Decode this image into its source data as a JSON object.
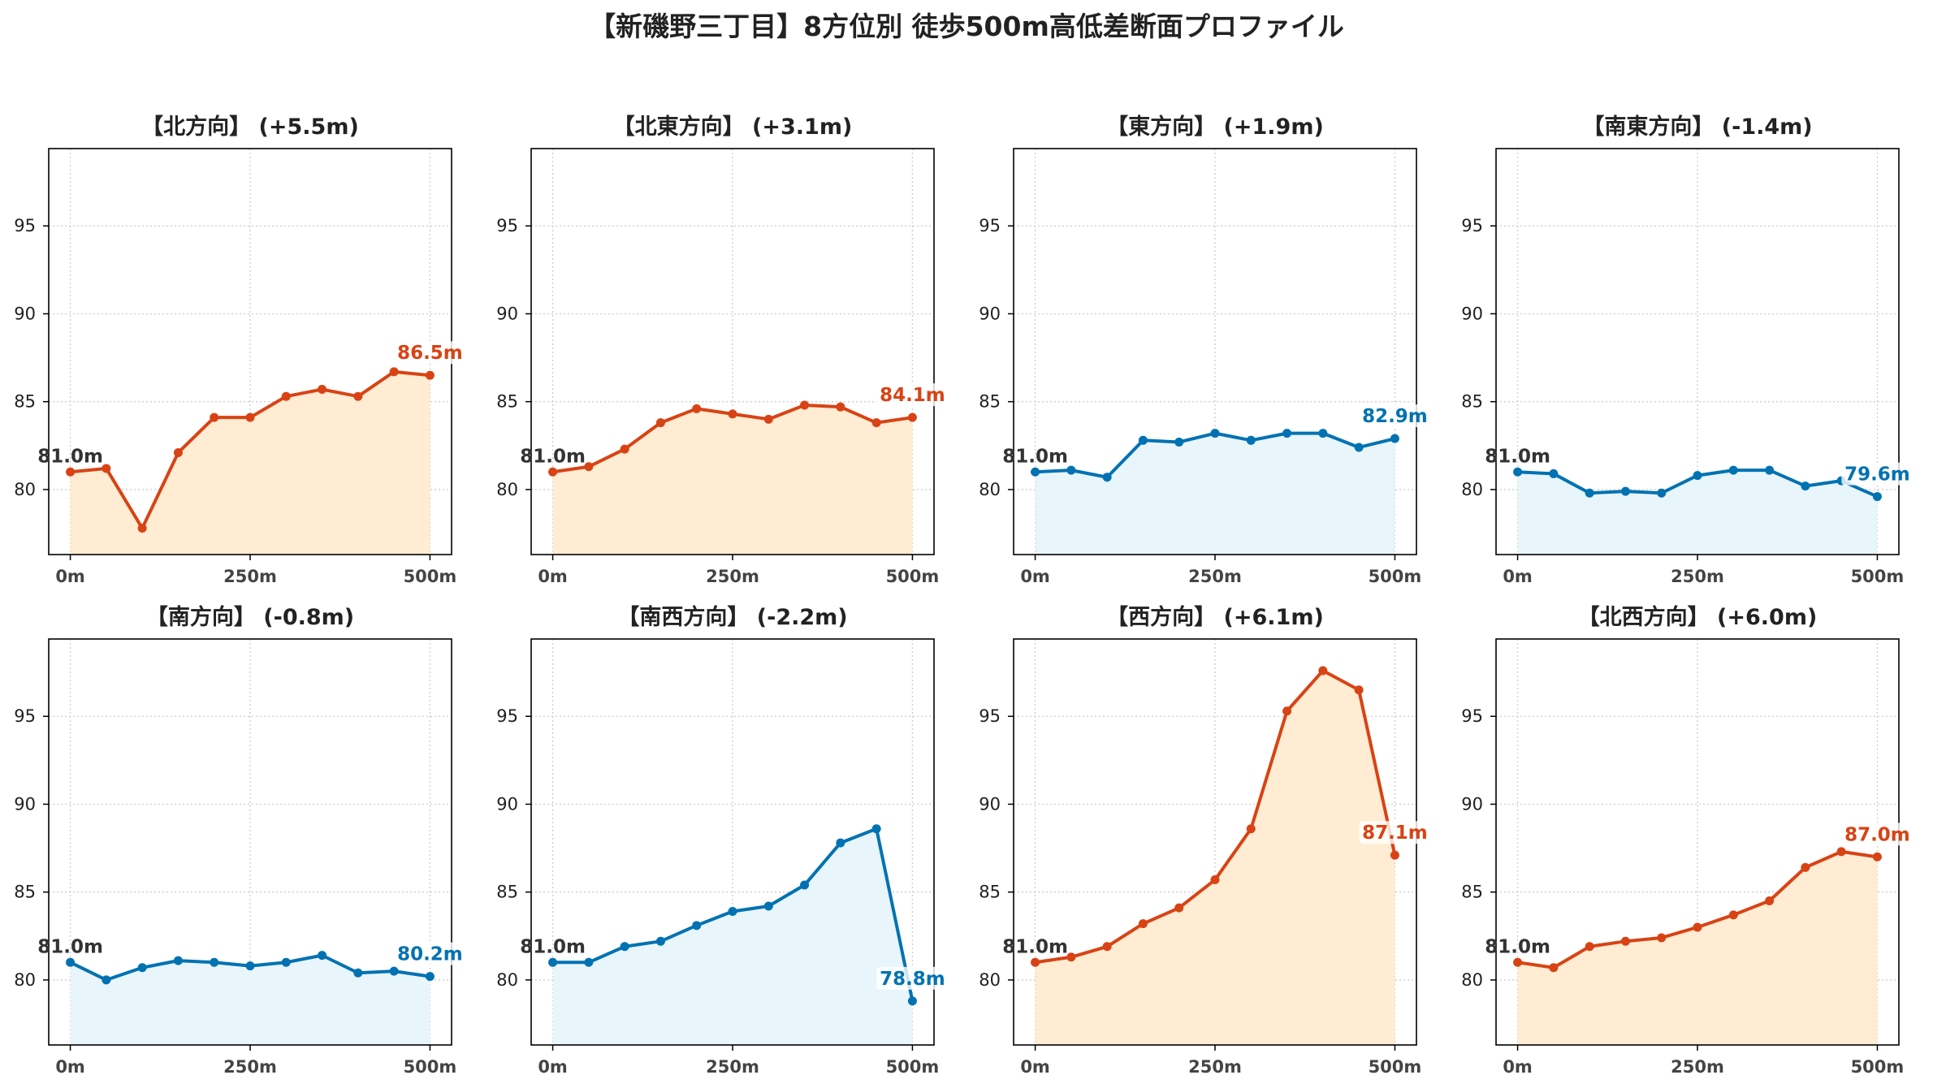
{
  "title": "【新磯野三丁目】8方位別 徒歩500m高低差断面プロファイル",
  "colors": {
    "up_line": "#d84315",
    "up_fill": "#ffecd2",
    "down_line": "#0072b2",
    "down_fill": "#e8f5fb",
    "start_label": "#333333",
    "grid": "#cccccc"
  },
  "chart_data": [
    {
      "type": "area",
      "title": "【北方向】 (+5.5m)",
      "trend": "up",
      "x": [
        0,
        50,
        100,
        150,
        200,
        250,
        300,
        350,
        400,
        450,
        500
      ],
      "values": [
        81.0,
        81.2,
        77.8,
        82.1,
        84.1,
        84.1,
        85.3,
        85.7,
        85.3,
        86.7,
        86.5
      ],
      "start_label": "81.0m",
      "end_label": "86.5m",
      "xlim": [
        -30,
        530
      ],
      "ylim": [
        76.3,
        99.4
      ],
      "xticks": [
        "0m",
        "250m",
        "500m"
      ],
      "yticks": [
        80,
        85,
        90,
        95
      ],
      "grid": true
    },
    {
      "type": "area",
      "title": "【北東方向】 (+3.1m)",
      "trend": "up",
      "x": [
        0,
        50,
        100,
        150,
        200,
        250,
        300,
        350,
        400,
        450,
        500
      ],
      "values": [
        81.0,
        81.3,
        82.3,
        83.8,
        84.6,
        84.3,
        84.0,
        84.8,
        84.7,
        83.8,
        84.1
      ],
      "start_label": "81.0m",
      "end_label": "84.1m",
      "xlim": [
        -30,
        530
      ],
      "ylim": [
        76.3,
        99.4
      ],
      "xticks": [
        "0m",
        "250m",
        "500m"
      ],
      "yticks": [
        80,
        85,
        90,
        95
      ],
      "grid": true
    },
    {
      "type": "area",
      "title": "【東方向】 (+1.9m)",
      "trend": "down",
      "x": [
        0,
        50,
        100,
        150,
        200,
        250,
        300,
        350,
        400,
        450,
        500
      ],
      "values": [
        81.0,
        81.1,
        80.7,
        82.8,
        82.7,
        83.2,
        82.8,
        83.2,
        83.2,
        82.4,
        82.9
      ],
      "start_label": "81.0m",
      "end_label": "82.9m",
      "xlim": [
        -30,
        530
      ],
      "ylim": [
        76.3,
        99.4
      ],
      "xticks": [
        "0m",
        "250m",
        "500m"
      ],
      "yticks": [
        80,
        85,
        90,
        95
      ],
      "grid": true
    },
    {
      "type": "area",
      "title": "【南東方向】 (-1.4m)",
      "trend": "down",
      "x": [
        0,
        50,
        100,
        150,
        200,
        250,
        300,
        350,
        400,
        450,
        500
      ],
      "values": [
        81.0,
        80.9,
        79.8,
        79.9,
        79.8,
        80.8,
        81.1,
        81.1,
        80.2,
        80.5,
        79.6
      ],
      "start_label": "81.0m",
      "end_label": "79.6m",
      "xlim": [
        -30,
        530
      ],
      "ylim": [
        76.3,
        99.4
      ],
      "xticks": [
        "0m",
        "250m",
        "500m"
      ],
      "yticks": [
        80,
        85,
        90,
        95
      ],
      "grid": true
    },
    {
      "type": "area",
      "title": "【南方向】 (-0.8m)",
      "trend": "down",
      "x": [
        0,
        50,
        100,
        150,
        200,
        250,
        300,
        350,
        400,
        450,
        500
      ],
      "values": [
        81.0,
        80.0,
        80.7,
        81.1,
        81.0,
        80.8,
        81.0,
        81.4,
        80.4,
        80.5,
        80.2
      ],
      "start_label": "81.0m",
      "end_label": "80.2m",
      "xlim": [
        -30,
        530
      ],
      "ylim": [
        76.3,
        99.4
      ],
      "xticks": [
        "0m",
        "250m",
        "500m"
      ],
      "yticks": [
        80,
        85,
        90,
        95
      ],
      "grid": true
    },
    {
      "type": "area",
      "title": "【南西方向】 (-2.2m)",
      "trend": "down",
      "x": [
        0,
        50,
        100,
        150,
        200,
        250,
        300,
        350,
        400,
        450,
        500
      ],
      "values": [
        81.0,
        81.0,
        81.9,
        82.2,
        83.1,
        83.9,
        84.2,
        85.4,
        87.8,
        88.6,
        78.8
      ],
      "start_label": "81.0m",
      "end_label": "78.8m",
      "xlim": [
        -30,
        530
      ],
      "ylim": [
        76.3,
        99.4
      ],
      "xticks": [
        "0m",
        "250m",
        "500m"
      ],
      "yticks": [
        80,
        85,
        90,
        95
      ],
      "grid": true
    },
    {
      "type": "area",
      "title": "【西方向】 (+6.1m)",
      "trend": "up",
      "x": [
        0,
        50,
        100,
        150,
        200,
        250,
        300,
        350,
        400,
        450,
        500
      ],
      "values": [
        81.0,
        81.3,
        81.9,
        83.2,
        84.1,
        85.7,
        88.6,
        95.3,
        97.6,
        96.5,
        87.1
      ],
      "start_label": "81.0m",
      "end_label": "87.1m",
      "xlim": [
        -30,
        530
      ],
      "ylim": [
        76.3,
        99.4
      ],
      "xticks": [
        "0m",
        "250m",
        "500m"
      ],
      "yticks": [
        80,
        85,
        90,
        95
      ],
      "grid": true
    },
    {
      "type": "area",
      "title": "【北西方向】 (+6.0m)",
      "trend": "up",
      "x": [
        0,
        50,
        100,
        150,
        200,
        250,
        300,
        350,
        400,
        450,
        500
      ],
      "values": [
        81.0,
        80.7,
        81.9,
        82.2,
        82.4,
        83.0,
        83.7,
        84.5,
        86.4,
        87.3,
        87.0
      ],
      "start_label": "81.0m",
      "end_label": "87.0m",
      "xlim": [
        -30,
        530
      ],
      "ylim": [
        76.3,
        99.4
      ],
      "xticks": [
        "0m",
        "250m",
        "500m"
      ],
      "yticks": [
        80,
        85,
        90,
        95
      ],
      "grid": true
    }
  ]
}
